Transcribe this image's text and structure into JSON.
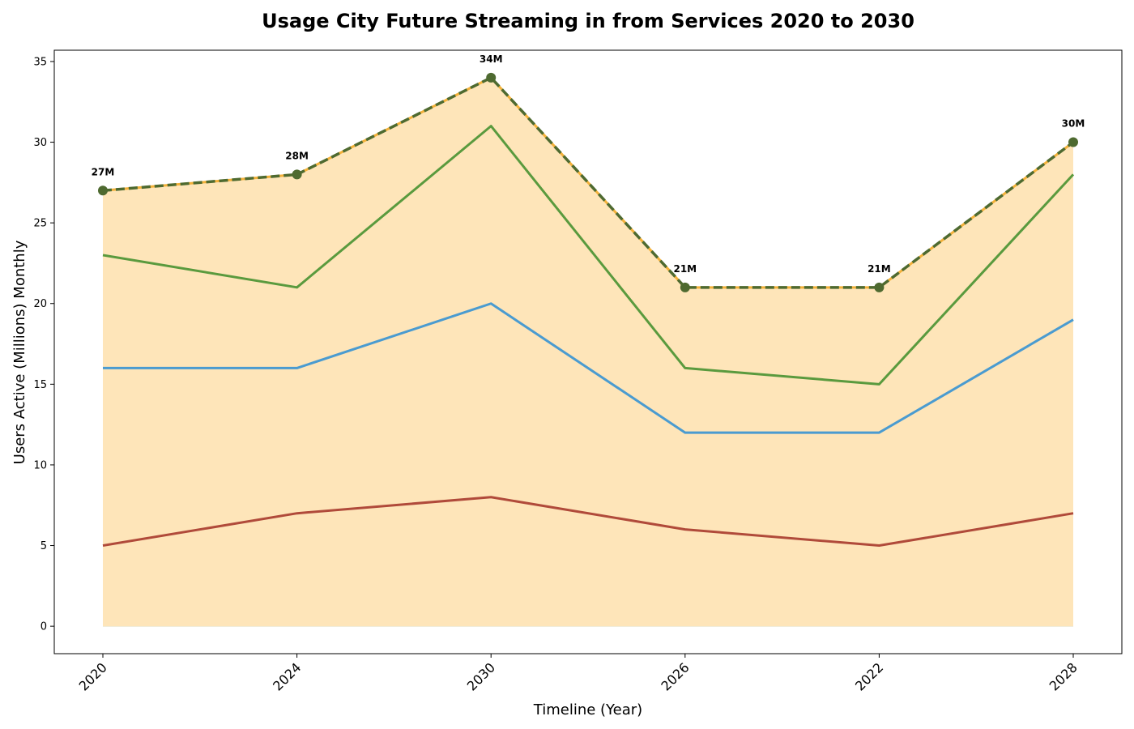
{
  "chart_data": {
    "type": "area",
    "title": "Usage City Future Streaming in from Services 2020 to 2030",
    "xlabel": "Timeline (Year)",
    "ylabel": "Users Active (Millions) Monthly",
    "categories": [
      "2020",
      "2024",
      "2030",
      "2026",
      "2022",
      "2028"
    ],
    "ylim": [
      -1.7,
      35.7
    ],
    "yticks": [
      0,
      5,
      10,
      15,
      20,
      25,
      30,
      35
    ],
    "grid": false,
    "legend": "none",
    "series": [
      {
        "values": [
          5,
          7,
          8,
          6,
          5,
          7
        ],
        "line_color": "#b04a3a",
        "fill_color": "#8f8a4a"
      },
      {
        "values": [
          16,
          16,
          20,
          12,
          12,
          19
        ],
        "line_color": "#4a9bd0",
        "fill_color": "#b2bf8f"
      },
      {
        "values": [
          23,
          21,
          31,
          16,
          15,
          28
        ],
        "line_color": "#5a9a3e",
        "fill_color": "#d3d08e"
      },
      {
        "values": [
          27,
          28,
          34,
          21,
          21,
          30
        ],
        "line_color": "#f3b13a",
        "fill_color": "#fee5b9",
        "dash_color": "#4e6a30",
        "markers": true
      }
    ],
    "annotations": [
      "27M",
      "28M",
      "34M",
      "21M",
      "21M",
      "30M"
    ]
  }
}
